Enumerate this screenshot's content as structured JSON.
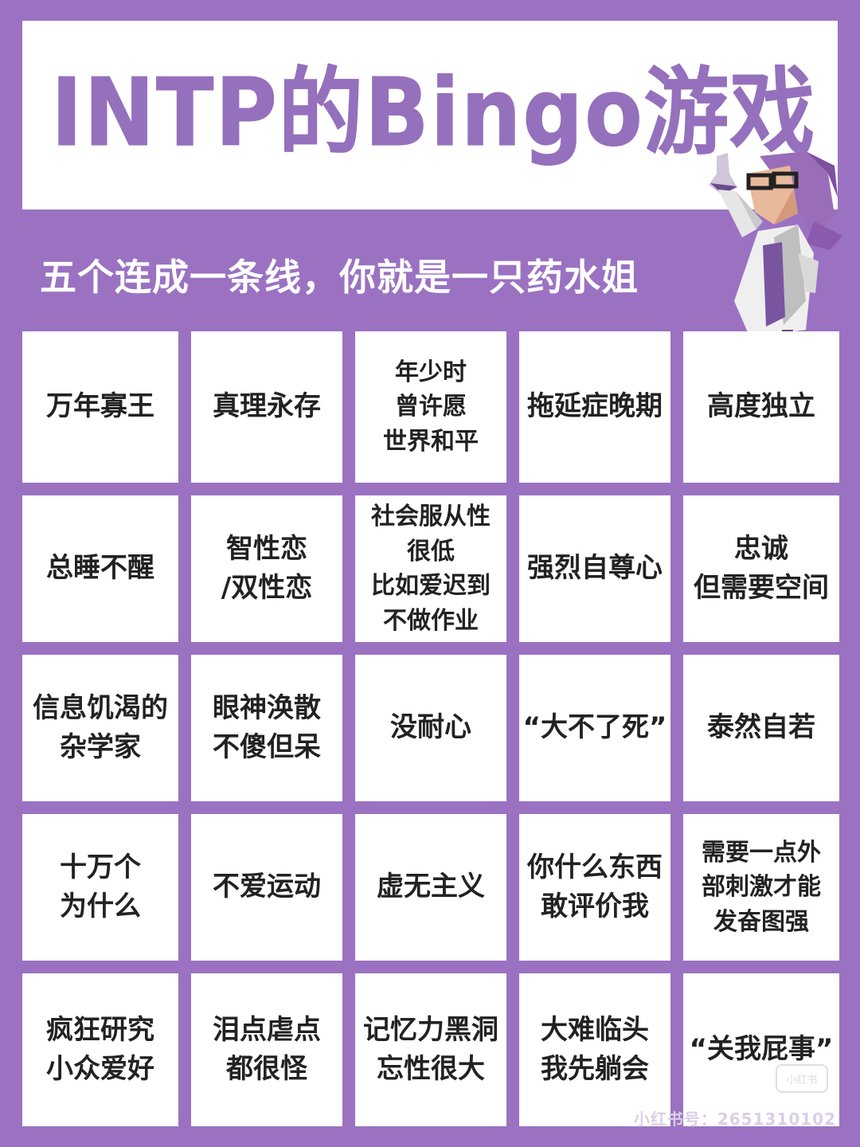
{
  "title": "INTP的Bingo游戏",
  "subtitle": "五个连成一条线，你就是一只药水姐",
  "colors": {
    "background": "#9b72c2",
    "title": "#9570bd",
    "cell": "#ffffff",
    "text": "#222222"
  },
  "grid": [
    [
      "万年寡王",
      "真理永存",
      "年少时\n曾许愿\n世界和平",
      "拖延症晚期",
      "高度独立"
    ],
    [
      "总睡不醒",
      "智性恋\n/双性恋",
      "社会服从性\n很低\n比如爱迟到\n不做作业",
      "强烈自尊心",
      "忠诚\n但需要空间"
    ],
    [
      "信息饥渴的\n杂学家",
      "眼神涣散\n不傻但呆",
      "没耐心",
      "“大不了死”",
      "泰然自若"
    ],
    [
      "十万个\n为什么",
      "不爱运动",
      "虚无主义",
      "你什么东西\n敢评价我",
      "需要一点外\n部刺激才能\n发奋图强"
    ],
    [
      "疯狂研究\n小众爱好",
      "泪点虐点\n都很怪",
      "记忆力黑洞\n忘性很大",
      "大难临头\n我先躺会",
      "“关我屁事”"
    ]
  ],
  "watermark": {
    "badge": "小红书",
    "text": "小红书号：2651310102"
  },
  "icons": [
    "scientist-mascot-icon"
  ]
}
